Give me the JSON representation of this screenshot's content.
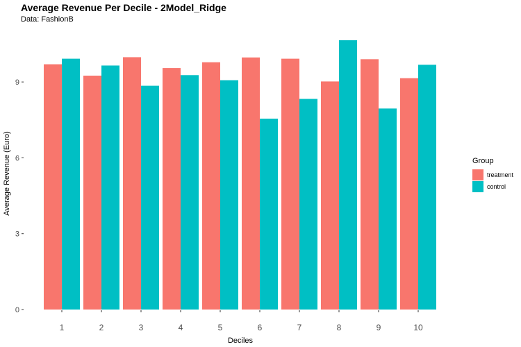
{
  "chart_data": {
    "type": "bar",
    "title": "Average Revenue Per Decile - 2Model_Ridge",
    "subtitle": "Data: FashionB",
    "xlabel": "Deciles",
    "ylabel": "Average Revenue (Euro)",
    "categories": [
      "1",
      "2",
      "3",
      "4",
      "5",
      "6",
      "7",
      "8",
      "9",
      "10"
    ],
    "series": [
      {
        "name": "treatment",
        "color": "#F8766D",
        "values": [
          9.7,
          9.25,
          9.98,
          9.55,
          9.78,
          9.97,
          9.92,
          9.02,
          9.9,
          9.15
        ]
      },
      {
        "name": "control",
        "color": "#00BFC4",
        "values": [
          9.92,
          9.65,
          8.85,
          9.27,
          9.07,
          7.55,
          8.33,
          10.65,
          7.95,
          9.68
        ]
      }
    ],
    "ylim": [
      0,
      10.65
    ],
    "yticks": [
      0,
      3,
      6,
      9
    ],
    "ytick_labels": [
      "0",
      "3",
      "6",
      "9"
    ],
    "grid": false,
    "legend": {
      "title": "Group",
      "position": "right"
    }
  }
}
